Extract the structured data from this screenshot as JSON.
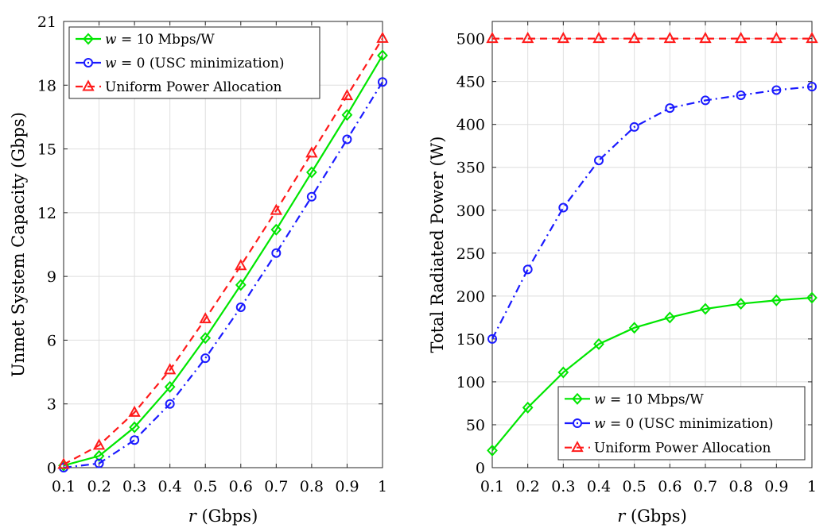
{
  "chart_data": [
    {
      "type": "line",
      "xlabel_var": "r",
      "xlabel_unit": "(Gbps)",
      "ylabel": "Unmet System Capacity (Gbps)",
      "x": [
        0.1,
        0.2,
        0.3,
        0.4,
        0.5,
        0.6,
        0.7,
        0.8,
        0.9,
        1
      ],
      "xlim": [
        0.1,
        1
      ],
      "ylim": [
        0,
        21
      ],
      "xticks": [
        "0.1",
        "0.2",
        "0.3",
        "0.4",
        "0.5",
        "0.6",
        "0.7",
        "0.8",
        "0.9",
        "1"
      ],
      "yticks": [
        0,
        3,
        6,
        9,
        12,
        15,
        18,
        21
      ],
      "grid": true,
      "legend_position": "top-left",
      "series": [
        {
          "name_var": "w",
          "name_rest": " = 10 Mbps/W",
          "color": "#00e600",
          "dash": "solid",
          "marker": "diamond",
          "values": [
            0.1,
            0.55,
            1.9,
            3.8,
            6.1,
            8.6,
            11.2,
            13.9,
            16.6,
            19.4
          ]
        },
        {
          "name_var": "w",
          "name_rest": " = 0 (USC minimization)",
          "color": "#1a1aff",
          "dash": "dashdot",
          "marker": "circle",
          "values": [
            0.0,
            0.2,
            1.3,
            3.0,
            5.15,
            7.55,
            10.1,
            12.75,
            15.45,
            18.15
          ]
        },
        {
          "name_var": "",
          "name_rest": "Uniform Power Allocation",
          "color": "#ff1a1a",
          "dash": "dashed",
          "marker": "triangle",
          "values": [
            0.15,
            1.05,
            2.6,
            4.6,
            7.0,
            9.5,
            12.1,
            14.8,
            17.5,
            20.2
          ]
        }
      ]
    },
    {
      "type": "line",
      "xlabel_var": "r",
      "xlabel_unit": "(Gbps)",
      "ylabel": "Total Radiated Power (W)",
      "x": [
        0.1,
        0.2,
        0.3,
        0.4,
        0.5,
        0.6,
        0.7,
        0.8,
        0.9,
        1
      ],
      "xlim": [
        0.1,
        1
      ],
      "ylim": [
        0,
        520
      ],
      "xticks": [
        "0.1",
        "0.2",
        "0.3",
        "0.4",
        "0.5",
        "0.6",
        "0.7",
        "0.8",
        "0.9",
        "1"
      ],
      "yticks": [
        0,
        50,
        100,
        150,
        200,
        250,
        300,
        350,
        400,
        450,
        500
      ],
      "grid": true,
      "legend_position": "bottom-right",
      "series": [
        {
          "name_var": "w",
          "name_rest": " = 10 Mbps/W",
          "color": "#00e600",
          "dash": "solid",
          "marker": "diamond",
          "values": [
            20,
            70,
            111,
            144,
            163,
            175,
            185,
            191,
            195,
            198
          ]
        },
        {
          "name_var": "w",
          "name_rest": " = 0 (USC minimization)",
          "color": "#1a1aff",
          "dash": "dashdot",
          "marker": "circle",
          "values": [
            150,
            231,
            303,
            358,
            397,
            419,
            428,
            434,
            440,
            444
          ]
        },
        {
          "name_var": "",
          "name_rest": "Uniform Power Allocation",
          "color": "#ff1a1a",
          "dash": "dashed",
          "marker": "triangle",
          "values": [
            500,
            500,
            500,
            500,
            500,
            500,
            500,
            500,
            500,
            500
          ]
        }
      ]
    }
  ]
}
